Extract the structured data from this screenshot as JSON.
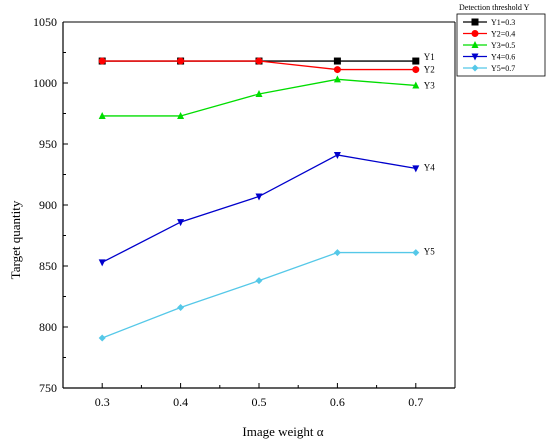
{
  "chart_data": {
    "type": "line",
    "xlabel": "Image weight α",
    "ylabel": "Target quantity",
    "x": [
      0.3,
      0.4,
      0.5,
      0.6,
      0.7
    ],
    "x_tick_labels": [
      "0.3",
      "0.4",
      "0.5",
      "0.6",
      "0.7"
    ],
    "xlim": [
      0.25,
      0.75
    ],
    "ylim": [
      750,
      1050
    ],
    "y_ticks": [
      750,
      800,
      850,
      900,
      950,
      1000,
      1050
    ],
    "y_tick_labels": [
      "750",
      "800",
      "850",
      "900",
      "950",
      "1000",
      "1050"
    ],
    "grid": false,
    "legend": {
      "title": "Detection threshold Y",
      "position": "top-right",
      "entries": [
        "Y1=0.3",
        "Y2=0.4",
        "Y3=0.5",
        "Y4=0.6",
        "Y5=0.7"
      ]
    },
    "series": [
      {
        "name": "Y1=0.3",
        "end_label": "Y1",
        "color": "#000000",
        "marker": "square",
        "values": [
          1018,
          1018,
          1018,
          1018,
          1018
        ]
      },
      {
        "name": "Y2=0.4",
        "end_label": "Y2",
        "color": "#ff0000",
        "marker": "circle",
        "values": [
          1018,
          1018,
          1018,
          1011,
          1011
        ]
      },
      {
        "name": "Y3=0.5",
        "end_label": "Y3",
        "color": "#00dd00",
        "marker": "triangle-up",
        "values": [
          973,
          973,
          991,
          1003,
          998
        ]
      },
      {
        "name": "Y4=0.6",
        "end_label": "Y4",
        "color": "#0000cc",
        "marker": "triangle-down",
        "values": [
          853,
          886,
          907,
          941,
          930
        ]
      },
      {
        "name": "Y5=0.7",
        "end_label": "Y5",
        "color": "#55c8e8",
        "marker": "diamond",
        "values": [
          791,
          816,
          838,
          861,
          861
        ]
      }
    ]
  }
}
